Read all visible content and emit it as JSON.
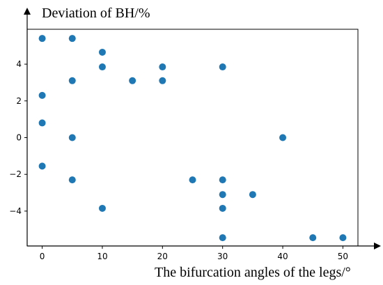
{
  "chart_data": {
    "type": "scatter",
    "title": "",
    "xlabel": "The bifurcation angles of the legs/°",
    "ylabel": "Deviation of BH/%",
    "xlim": [
      -2.5,
      52.5
    ],
    "ylim": [
      -5.9,
      5.9
    ],
    "xticks": [
      0,
      10,
      20,
      30,
      40,
      50
    ],
    "yticks": [
      -4,
      -2,
      0,
      2,
      4
    ],
    "xtick_labels": [
      "0",
      "10",
      "20",
      "30",
      "40",
      "50"
    ],
    "ytick_labels": [
      "−4",
      "−2",
      "0",
      "2",
      "4"
    ],
    "grid": false,
    "marker_color": "#1f77b4",
    "points": [
      {
        "x": 0,
        "y": 5.4
      },
      {
        "x": 0,
        "y": 2.3
      },
      {
        "x": 0,
        "y": 0.8
      },
      {
        "x": 0,
        "y": -1.55
      },
      {
        "x": 5,
        "y": 5.4
      },
      {
        "x": 5,
        "y": 3.1
      },
      {
        "x": 5,
        "y": 0
      },
      {
        "x": 5,
        "y": -2.3
      },
      {
        "x": 10,
        "y": 4.65
      },
      {
        "x": 10,
        "y": 3.85
      },
      {
        "x": 10,
        "y": -3.85
      },
      {
        "x": 15,
        "y": 3.1
      },
      {
        "x": 20,
        "y": 3.85
      },
      {
        "x": 20,
        "y": 3.1
      },
      {
        "x": 25,
        "y": -2.3
      },
      {
        "x": 30,
        "y": 3.85
      },
      {
        "x": 30,
        "y": -2.3
      },
      {
        "x": 30,
        "y": -3.1
      },
      {
        "x": 30,
        "y": -3.85
      },
      {
        "x": 30,
        "y": -5.45
      },
      {
        "x": 35,
        "y": -3.1
      },
      {
        "x": 40,
        "y": 0
      },
      {
        "x": 45,
        "y": -5.45
      },
      {
        "x": 50,
        "y": -5.45
      }
    ]
  }
}
